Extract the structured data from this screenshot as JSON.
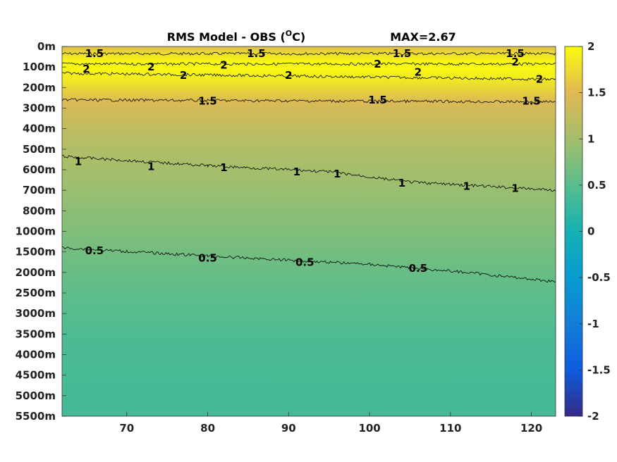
{
  "chart_data": {
    "type": "heatmap",
    "title_prefix": "RMS Model - OBS (",
    "title_sup": "O",
    "title_suffix": "C)",
    "max_label": "MAX=2.67",
    "x_ticks": [
      70,
      80,
      90,
      100,
      110,
      120
    ],
    "x_tick_labels": [
      "70",
      "80",
      "90",
      "100",
      "110",
      "120"
    ],
    "xlim": [
      62,
      123
    ],
    "y_tick_labels": [
      "0m",
      "100m",
      "200m",
      "300m",
      "400m",
      "500m",
      "600m",
      "700m",
      "800m",
      "1000m",
      "1500m",
      "2000m",
      "2500m",
      "3000m",
      "3500m",
      "4000m",
      "4500m",
      "5000m",
      "5500m"
    ],
    "colorbar": {
      "range": [
        -2,
        2
      ],
      "ticks": [
        2,
        1.5,
        1,
        0.5,
        0,
        -0.5,
        -1,
        -1.5,
        -2
      ],
      "tick_labels": [
        "2",
        "1.5",
        "1",
        "0.5",
        "0",
        "-0.5",
        "-1",
        "-1.5",
        "-2"
      ],
      "colormap": "parula"
    },
    "depth_profile": {
      "depth_index": [
        0,
        0.3,
        0.8,
        1.5,
        2.7,
        3.5,
        4.5,
        6,
        8,
        9.5,
        11,
        12.5,
        14,
        16,
        18
      ],
      "value": [
        1.45,
        1.75,
        2.05,
        1.9,
        1.45,
        1.3,
        1.15,
        1.0,
        0.85,
        0.72,
        0.6,
        0.5,
        0.42,
        0.37,
        0.35
      ]
    },
    "contours": [
      {
        "level": "1.5",
        "depth_index": [
          [
            62,
            0.35
          ],
          [
            123,
            0.35
          ]
        ],
        "labels": [
          [
            66,
            0.35
          ],
          [
            86,
            0.35
          ],
          [
            104,
            0.35
          ],
          [
            118,
            0.35
          ]
        ]
      },
      {
        "level": "2",
        "depth_index": [
          [
            62,
            0.85
          ],
          [
            123,
            0.85
          ]
        ],
        "labels": [
          [
            65,
            1.1
          ],
          [
            73,
            1.0
          ],
          [
            82,
            0.9
          ],
          [
            101,
            0.85
          ],
          [
            118,
            0.75
          ]
        ]
      },
      {
        "level": "2",
        "depth_index": [
          [
            62,
            1.3
          ],
          [
            123,
            1.6
          ]
        ],
        "labels": [
          [
            77,
            1.4
          ],
          [
            90,
            1.4
          ],
          [
            106,
            1.25
          ],
          [
            121,
            1.6
          ]
        ]
      },
      {
        "level": "1.5",
        "depth_index": [
          [
            62,
            2.6
          ],
          [
            123,
            2.7
          ]
        ],
        "labels": [
          [
            80,
            2.65
          ],
          [
            101,
            2.6
          ],
          [
            120,
            2.65
          ]
        ]
      },
      {
        "level": "1",
        "depth_index": [
          [
            62,
            5.35
          ],
          [
            80,
            5.8
          ],
          [
            95,
            6.1
          ],
          [
            105,
            6.6
          ],
          [
            123,
            7.0
          ]
        ],
        "labels": [
          [
            64,
            5.6
          ],
          [
            73,
            5.85
          ],
          [
            82,
            5.9
          ],
          [
            91,
            6.1
          ],
          [
            96,
            6.2
          ],
          [
            104,
            6.65
          ],
          [
            112,
            6.8
          ],
          [
            118,
            6.9
          ]
        ]
      },
      {
        "level": "0.5",
        "depth_index": [
          [
            62,
            9.8
          ],
          [
            80,
            10.2
          ],
          [
            100,
            10.6
          ],
          [
            112,
            11.0
          ],
          [
            123,
            11.45
          ]
        ],
        "labels": [
          [
            66,
            9.95
          ],
          [
            80,
            10.3
          ],
          [
            92,
            10.5
          ],
          [
            106,
            10.8
          ]
        ]
      }
    ]
  }
}
